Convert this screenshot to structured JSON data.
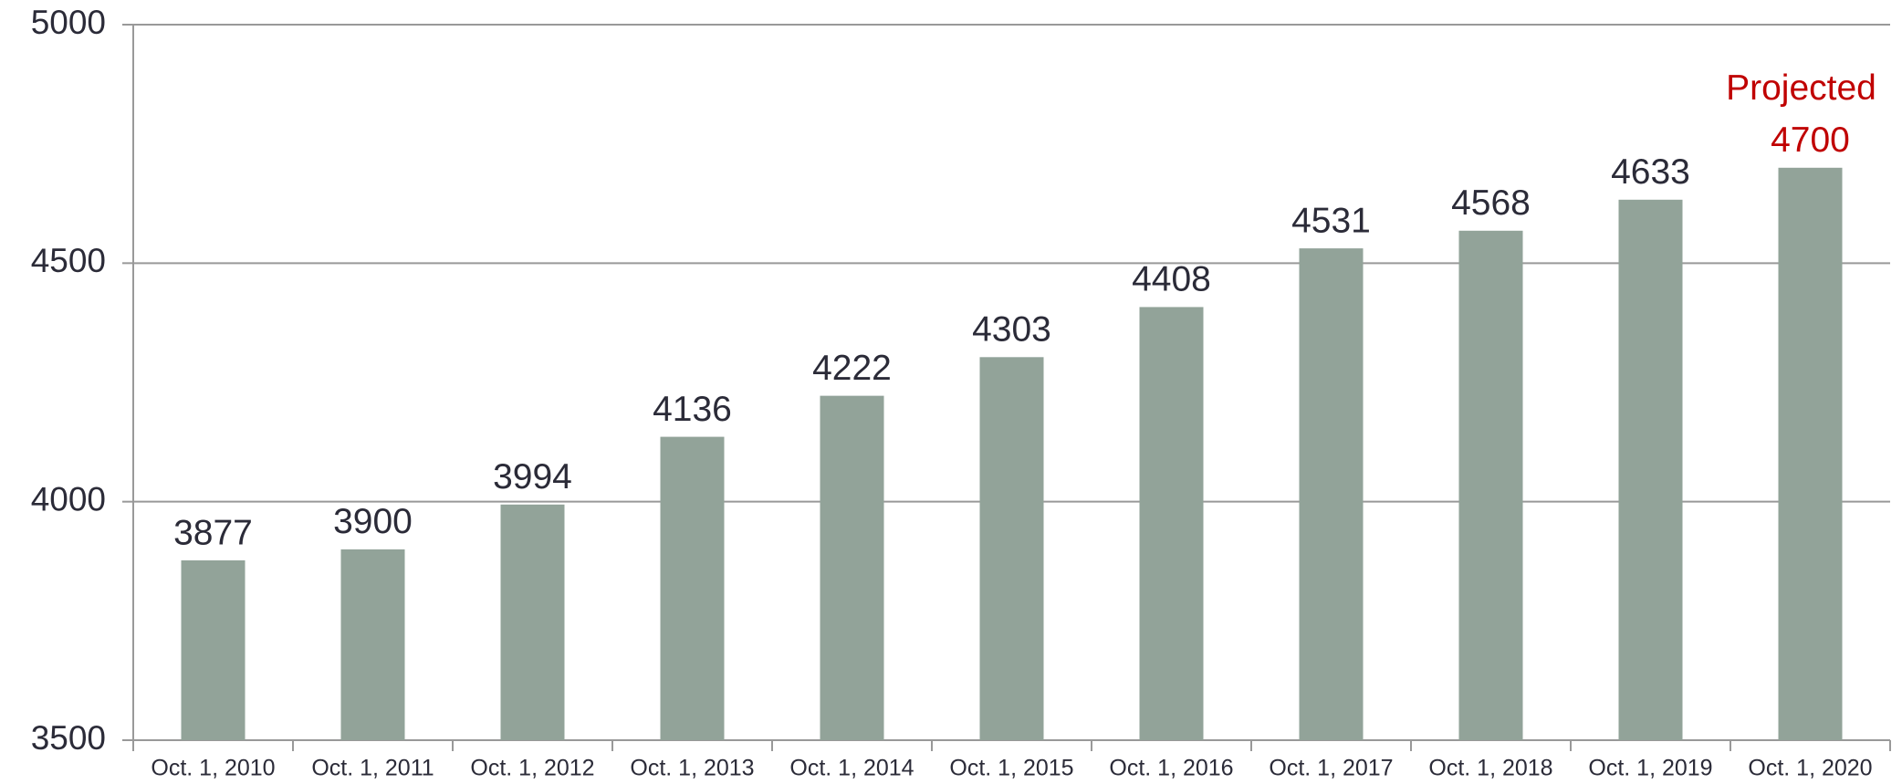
{
  "chart_data": {
    "type": "bar",
    "categories": [
      "Oct. 1, 2010",
      "Oct. 1, 2011",
      "Oct. 1, 2012",
      "Oct. 1, 2013",
      "Oct. 1, 2014",
      "Oct. 1, 2015",
      "Oct. 1, 2016",
      "Oct. 1, 2017",
      "Oct. 1, 2018",
      "Oct. 1, 2019",
      "Oct. 1, 2020"
    ],
    "values": [
      3877,
      3900,
      3994,
      4136,
      4222,
      4303,
      4408,
      4531,
      4568,
      4633,
      4700
    ],
    "color": "#92a399",
    "ylim": [
      3500,
      5000
    ],
    "yticks": [
      3500,
      4000,
      4500,
      5000
    ],
    "grid": true,
    "annotation": {
      "text": "Projected",
      "category": "Oct. 1, 2020",
      "color": "#c00000"
    }
  }
}
